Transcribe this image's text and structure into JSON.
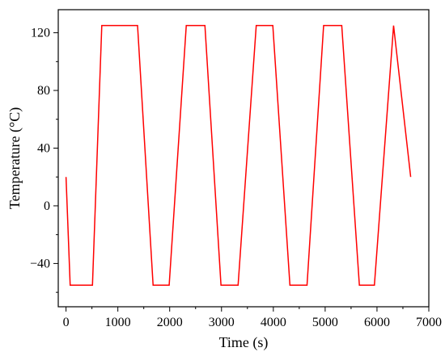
{
  "chart_data": {
    "type": "line",
    "title": "",
    "xlabel": "Time (s)",
    "ylabel": "Temperature (°C)",
    "xlim": [
      -150,
      7000
    ],
    "ylim": [
      -70,
      136
    ],
    "xticks": [
      0,
      1000,
      2000,
      3000,
      4000,
      5000,
      6000,
      7000
    ],
    "yticks": [
      -40,
      0,
      40,
      80,
      120
    ],
    "xtick_labels": [
      "0",
      "1000",
      "2000",
      "3000",
      "4000",
      "5000",
      "6000",
      "7000"
    ],
    "ytick_labels": [
      "−40",
      "0",
      "40",
      "80",
      "120"
    ],
    "grid": false,
    "legend": "none",
    "series": [
      {
        "color": "#ff0000",
        "x": [
          0,
          80,
          510,
          690,
          1020,
          1380,
          1680,
          1990,
          2320,
          2680,
          2990,
          3320,
          3670,
          3990,
          4320,
          4650,
          4970,
          5320,
          5660,
          5950,
          6320,
          6650
        ],
        "y": [
          20,
          -55,
          -55,
          125,
          125,
          125,
          -55,
          -55,
          125,
          125,
          -55,
          -55,
          125,
          125,
          -55,
          -55,
          125,
          125,
          -55,
          -55,
          125,
          20
        ]
      }
    ]
  }
}
